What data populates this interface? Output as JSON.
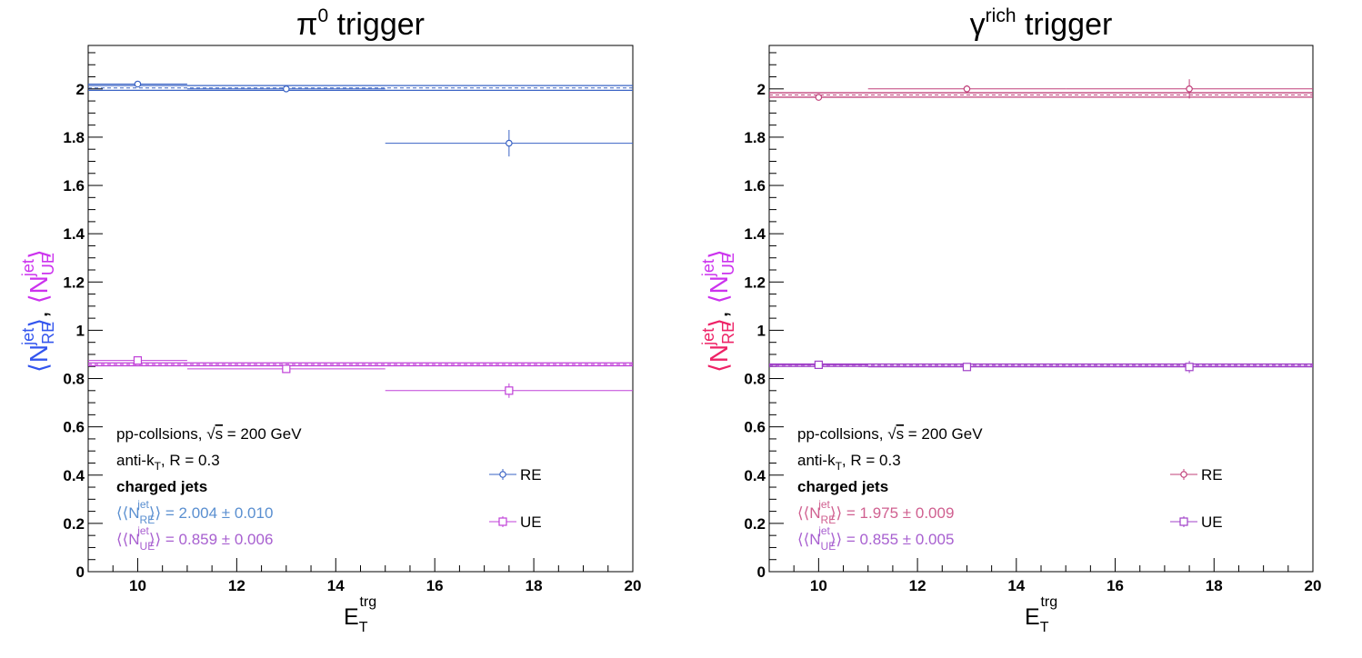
{
  "colors": {
    "left_re": "#3a63c4",
    "left_ue": "#c040d8",
    "right_re": "#c0407a",
    "right_ue": "#a040c8",
    "left_ylabel_re": "#3355ee",
    "left_ylabel_ue": "#cc33ee",
    "right_ylabel_re": "#ee2266",
    "right_ylabel_ue": "#cc33ee",
    "left_text_re": "#5a8fd0",
    "left_text_ue": "#a860d0",
    "right_text_re": "#d06090",
    "right_text_ue": "#a860d0"
  },
  "chart_data": [
    {
      "type": "scatter",
      "title_base": "π",
      "title_sup": "0",
      "title_rest": " trigger",
      "xlabel_base": "E",
      "xlabel_sub": "T",
      "xlabel_sup": "trg",
      "ylabel": {
        "N": "N",
        "jet": "jet",
        "RE": "RE",
        "UE": "UE",
        "lang": "⟨",
        "rang": "⟩",
        "sep": ","
      },
      "xlim": [
        9,
        20
      ],
      "ylim": [
        0,
        2.18
      ],
      "x_ticks": [
        "10",
        "12",
        "14",
        "16",
        "18",
        "20"
      ],
      "y_ticks": [
        "0",
        "0.2",
        "0.4",
        "0.6",
        "0.8",
        "1",
        "1.2",
        "1.4",
        "1.6",
        "1.8",
        "2"
      ],
      "series": [
        {
          "name": "RE",
          "marker": "circle",
          "points": [
            {
              "x": 10,
              "xlo": 9,
              "xhi": 11,
              "y": 2.02,
              "yerr": 0.012
            },
            {
              "x": 13,
              "xlo": 11,
              "xhi": 15,
              "y": 2.0,
              "yerr": 0.014
            },
            {
              "x": 17.5,
              "xlo": 15,
              "xhi": 20,
              "y": 1.775,
              "yerr": 0.055
            }
          ],
          "fit": 2.004,
          "fit_err": 0.01
        },
        {
          "name": "UE",
          "marker": "square",
          "points": [
            {
              "x": 10,
              "xlo": 9,
              "xhi": 11,
              "y": 0.875,
              "yerr": 0.008
            },
            {
              "x": 13,
              "xlo": 11,
              "xhi": 15,
              "y": 0.84,
              "yerr": 0.01
            },
            {
              "x": 17.5,
              "xlo": 15,
              "xhi": 20,
              "y": 0.75,
              "yerr": 0.03
            }
          ],
          "fit": 0.859,
          "fit_err": 0.006
        }
      ],
      "annotations": {
        "line1_a": "pp-collsions, ",
        "line1_b": "s",
        "line1_c": " = 200 GeV",
        "line2_a": "anti-k",
        "line2_sub": "T",
        "line2_b": ", R = 0.3",
        "line3": "charged jets",
        "fit_re_value": " = 2.004 ± 0.010",
        "fit_ue_value": " = 0.859 ± 0.006"
      },
      "legend": {
        "placement": "bottom-right",
        "entries": [
          "RE",
          "UE"
        ]
      }
    },
    {
      "type": "scatter",
      "title_base": "γ",
      "title_sup": "rich",
      "title_rest": " trigger",
      "xlabel_base": "E",
      "xlabel_sub": "T",
      "xlabel_sup": "trg",
      "ylabel": {
        "N": "N",
        "jet": "jet",
        "RE": "RE",
        "UE": "UE",
        "lang": "⟨",
        "rang": "⟩",
        "sep": ","
      },
      "xlim": [
        9,
        20
      ],
      "ylim": [
        0,
        2.18
      ],
      "x_ticks": [
        "10",
        "12",
        "14",
        "16",
        "18",
        "20"
      ],
      "y_ticks": [
        "0",
        "0.2",
        "0.4",
        "0.6",
        "0.8",
        "1",
        "1.2",
        "1.4",
        "1.6",
        "1.8",
        "2"
      ],
      "series": [
        {
          "name": "RE",
          "marker": "circle",
          "points": [
            {
              "x": 10,
              "xlo": 9,
              "xhi": 11,
              "y": 1.965,
              "yerr": 0.01
            },
            {
              "x": 13,
              "xlo": 11,
              "xhi": 15,
              "y": 2.0,
              "yerr": 0.015
            },
            {
              "x": 17.5,
              "xlo": 15,
              "xhi": 20,
              "y": 2.0,
              "yerr": 0.04
            }
          ],
          "fit": 1.975,
          "fit_err": 0.009
        },
        {
          "name": "UE",
          "marker": "square",
          "points": [
            {
              "x": 10,
              "xlo": 9,
              "xhi": 11,
              "y": 0.857,
              "yerr": 0.008
            },
            {
              "x": 13,
              "xlo": 11,
              "xhi": 15,
              "y": 0.848,
              "yerr": 0.007
            },
            {
              "x": 17.5,
              "xlo": 15,
              "xhi": 20,
              "y": 0.848,
              "yerr": 0.025
            }
          ],
          "fit": 0.855,
          "fit_err": 0.005
        }
      ],
      "annotations": {
        "line1_a": "pp-collsions, ",
        "line1_b": "s",
        "line1_c": " = 200 GeV",
        "line2_a": "anti-k",
        "line2_sub": "T",
        "line2_b": ", R = 0.3",
        "line3": "charged jets",
        "fit_re_value": " = 1.975 ± 0.009",
        "fit_ue_value": " = 0.855 ± 0.005"
      },
      "legend": {
        "placement": "bottom-right",
        "entries": [
          "RE",
          "UE"
        ]
      }
    }
  ]
}
